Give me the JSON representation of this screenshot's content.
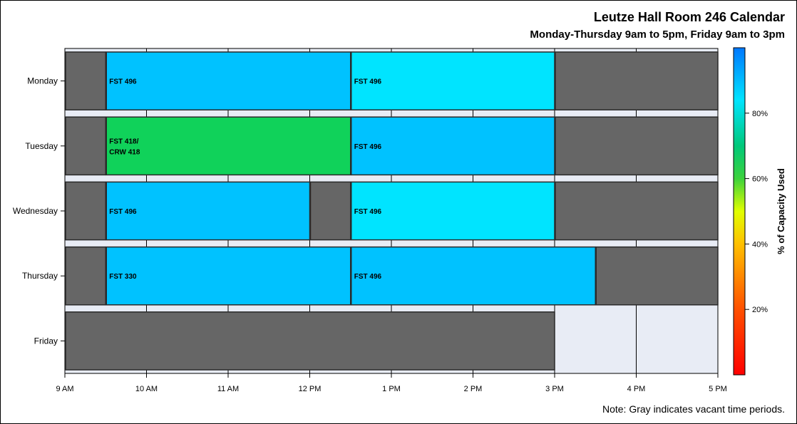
{
  "title": "Leutze Hall Room 246 Calendar",
  "subtitle": "Monday-Thursday 9am to 5pm, Friday 9am to 3pm",
  "note": "Note: Gray indicates vacant time periods.",
  "chart_data": {
    "type": "timeline",
    "title": "Leutze Hall Room 246 Calendar",
    "subtitle": "Monday-Thursday 9am to 5pm, Friday 9am to 3pm",
    "x_ticks": [
      {
        "value": 9,
        "label": "9 AM"
      },
      {
        "value": 10,
        "label": "10 AM"
      },
      {
        "value": 11,
        "label": "11 AM"
      },
      {
        "value": 12,
        "label": "12 PM"
      },
      {
        "value": 13,
        "label": "1 PM"
      },
      {
        "value": 14,
        "label": "2 PM"
      },
      {
        "value": 15,
        "label": "3 PM"
      },
      {
        "value": 16,
        "label": "4 PM"
      },
      {
        "value": 17,
        "label": "5 PM"
      }
    ],
    "xlim": [
      9,
      17
    ],
    "days": [
      {
        "day": "Monday",
        "blocks": [
          {
            "start": 9,
            "end": 9.5,
            "label": "",
            "pct": null
          },
          {
            "start": 9.5,
            "end": 12.5,
            "label": "FST 496",
            "pct": 88
          },
          {
            "start": 12.5,
            "end": 15,
            "label": "FST 496",
            "pct": 84
          },
          {
            "start": 15,
            "end": 17,
            "label": "",
            "pct": null
          }
        ]
      },
      {
        "day": "Tuesday",
        "blocks": [
          {
            "start": 9,
            "end": 9.5,
            "label": "",
            "pct": null
          },
          {
            "start": 9.5,
            "end": 12.5,
            "label": "FST 418/\nCRW 418",
            "pct": 68
          },
          {
            "start": 12.5,
            "end": 15,
            "label": "FST 496",
            "pct": 88
          },
          {
            "start": 15,
            "end": 17,
            "label": "",
            "pct": null
          }
        ]
      },
      {
        "day": "Wednesday",
        "blocks": [
          {
            "start": 9,
            "end": 9.5,
            "label": "",
            "pct": null
          },
          {
            "start": 9.5,
            "end": 12,
            "label": "FST 496",
            "pct": 88
          },
          {
            "start": 12,
            "end": 12.5,
            "label": "",
            "pct": null
          },
          {
            "start": 12.5,
            "end": 15,
            "label": "FST 496",
            "pct": 84
          },
          {
            "start": 15,
            "end": 17,
            "label": "",
            "pct": null
          }
        ]
      },
      {
        "day": "Thursday",
        "blocks": [
          {
            "start": 9,
            "end": 9.5,
            "label": "",
            "pct": null
          },
          {
            "start": 9.5,
            "end": 12.5,
            "label": "FST 330",
            "pct": 88
          },
          {
            "start": 12.5,
            "end": 15.5,
            "label": "FST 496",
            "pct": 88
          },
          {
            "start": 15.5,
            "end": 17,
            "label": "",
            "pct": null
          }
        ]
      },
      {
        "day": "Friday",
        "blocks": [
          {
            "start": 9,
            "end": 15,
            "label": "",
            "pct": null
          }
        ]
      }
    ],
    "colorbar": {
      "label": "% of Capacity Used",
      "range": [
        0,
        100
      ],
      "ticks": [
        {
          "value": 20,
          "label": "20%"
        },
        {
          "value": 40,
          "label": "40%"
        },
        {
          "value": 60,
          "label": "60%"
        },
        {
          "value": 80,
          "label": "80%"
        }
      ],
      "stops": [
        {
          "value": 0,
          "color": "#ff0000"
        },
        {
          "value": 20,
          "color": "#ff5000"
        },
        {
          "value": 40,
          "color": "#ffc000"
        },
        {
          "value": 50,
          "color": "#e0ff00"
        },
        {
          "value": 60,
          "color": "#3cd23c"
        },
        {
          "value": 70,
          "color": "#00c87a"
        },
        {
          "value": 84,
          "color": "#00e4ff"
        },
        {
          "value": 100,
          "color": "#0078ff"
        }
      ]
    },
    "colors": {
      "vacant": "#666666",
      "background": "#e8ecf5",
      "capacity_88": "#00c2ff",
      "capacity_84": "#00e4ff",
      "capacity_68": "#10d25a"
    }
  }
}
